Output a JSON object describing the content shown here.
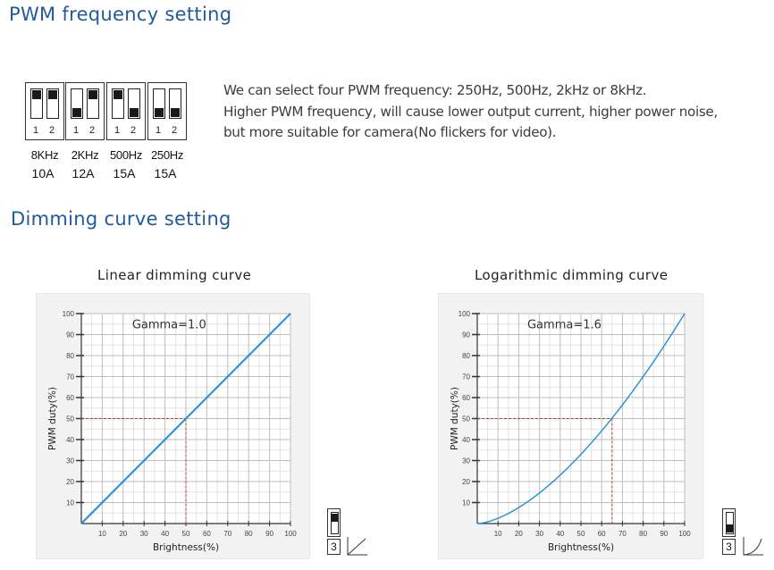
{
  "pwm_section": {
    "title": "PWM frequency setting",
    "switches": [
      {
        "positions": [
          "up",
          "up"
        ],
        "numbers": [
          "1",
          "2"
        ],
        "frequency": "8KHz",
        "current": "10A"
      },
      {
        "positions": [
          "down",
          "up"
        ],
        "numbers": [
          "1",
          "2"
        ],
        "frequency": "2KHz",
        "current": "12A"
      },
      {
        "positions": [
          "up",
          "down"
        ],
        "numbers": [
          "1",
          "2"
        ],
        "frequency": "500Hz",
        "current": "15A"
      },
      {
        "positions": [
          "down",
          "down"
        ],
        "numbers": [
          "1",
          "2"
        ],
        "frequency": "250Hz",
        "current": "15A"
      }
    ],
    "description": [
      "We can select four PWM frequency: 250Hz, 500Hz, 2kHz or 8kHz.",
      "Higher PWM frequency, will cause lower output current, higher power noise,",
      "but more suitable for camera(No flickers for video)."
    ]
  },
  "dimming_section": {
    "title": "Dimming curve setting",
    "linear": {
      "switch_position": "up",
      "switch_number": "3",
      "curve_icon": "linear-curve-icon"
    },
    "logarithmic": {
      "switch_position": "down",
      "switch_number": "3",
      "curve_icon": "log-curve-icon"
    }
  },
  "chart_data": [
    {
      "type": "line",
      "title": "Linear dimming curve",
      "annotation": "Gamma=1.0",
      "gamma": 1.0,
      "xlabel": "Brightness(%)",
      "ylabel": "PWM duty(%)",
      "xlim": [
        0,
        100
      ],
      "ylim": [
        0,
        100
      ],
      "x_ticks": [
        "10",
        "20",
        "30",
        "40",
        "50",
        "60",
        "70",
        "80",
        "90",
        "100"
      ],
      "y_ticks": [
        "10",
        "20",
        "30",
        "40",
        "50",
        "60",
        "70",
        "80",
        "90",
        "100"
      ],
      "grid": true,
      "line_color": "#1f8fd6",
      "reference_point": {
        "x": 50,
        "y": 50
      },
      "x": [
        0,
        100
      ],
      "y": [
        0,
        100
      ]
    },
    {
      "type": "line",
      "title": "Logarithmic dimming curve",
      "annotation": "Gamma=1.6",
      "gamma": 1.6,
      "xlabel": "Brightness(%)",
      "ylabel": "PWM duty(%)",
      "xlim": [
        0,
        100
      ],
      "ylim": [
        0,
        100
      ],
      "x_ticks": [
        "10",
        "20",
        "30",
        "40",
        "50",
        "60",
        "70",
        "80",
        "90",
        "100"
      ],
      "y_ticks": [
        "10",
        "20",
        "30",
        "40",
        "50",
        "60",
        "70",
        "80",
        "90",
        "100"
      ],
      "grid": true,
      "line_color": "#1f8fd6",
      "reference_point": {
        "x": 65,
        "y": 50
      },
      "x": [
        0,
        10,
        20,
        30,
        40,
        50,
        60,
        70,
        80,
        90,
        100
      ],
      "y": [
        0,
        2.5,
        7.6,
        14.6,
        23.1,
        33.0,
        44.2,
        56.5,
        70.0,
        84.5,
        100
      ]
    }
  ]
}
